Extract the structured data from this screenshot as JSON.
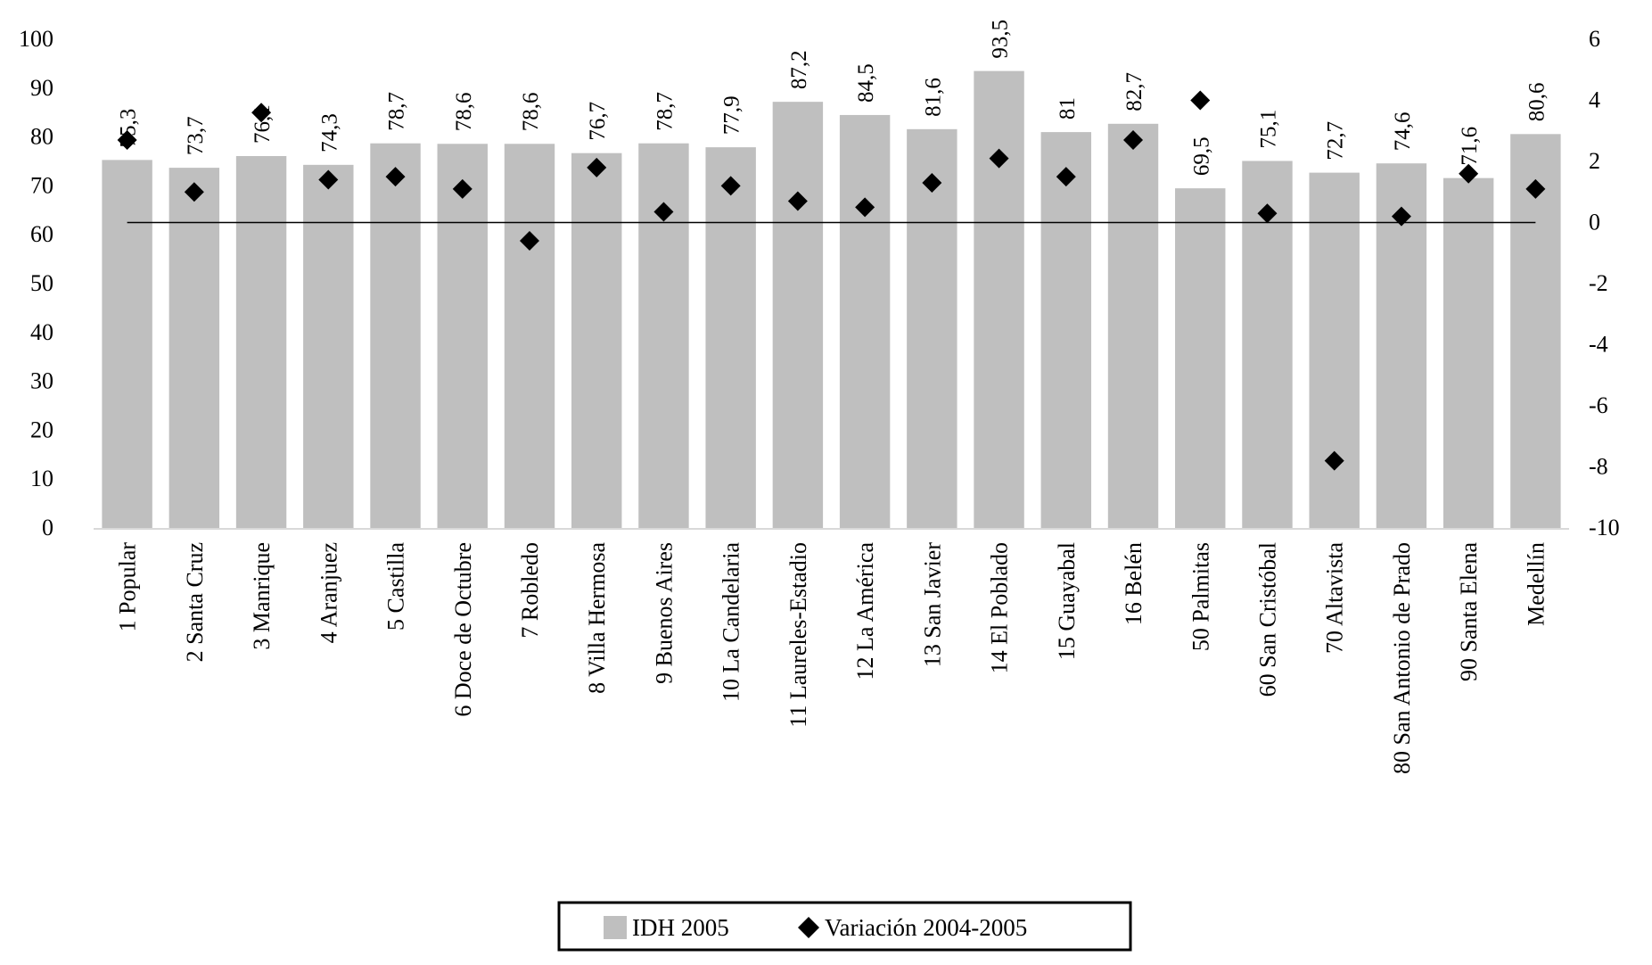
{
  "chart_data": {
    "type": "bar",
    "title": "",
    "xlabel": "",
    "ylabel": "",
    "categories": [
      "1 Popular",
      "2 Santa Cruz",
      "3 Manrique",
      "4 Aranjuez",
      "5 Castilla",
      "6 Doce de Octubre",
      "7 Robledo",
      "8 Villa Hermosa",
      "9 Buenos Aires",
      "10 La Candelaria",
      "11 Laureles-Estadio",
      "12 La América",
      "13 San Javier",
      "14 El Poblado",
      "15 Guayabal",
      "16 Belén",
      "50 Palmitas",
      "60 San Cristóbal",
      "70 Altavista",
      "80 San Antonio de Prado",
      "90 Santa Elena",
      "Medellín"
    ],
    "series": [
      {
        "name": "IDH 2005",
        "type": "bar",
        "axis": "left",
        "color": "#bfbfbf",
        "values": [
          75.3,
          73.7,
          76.1,
          74.3,
          78.7,
          78.6,
          78.6,
          76.7,
          78.7,
          77.9,
          87.2,
          84.5,
          81.6,
          93.5,
          81,
          82.7,
          69.5,
          75.1,
          72.7,
          74.6,
          71.6,
          80.6
        ],
        "labels": [
          "75,3",
          "73,7",
          "76,1",
          "74,3",
          "78,7",
          "78,6",
          "78,6",
          "76,7",
          "78,7",
          "77,9",
          "87,2",
          "84,5",
          "81,6",
          "93,5",
          "81",
          "82,7",
          "69,5",
          "75,1",
          "72,7",
          "74,6",
          "71,6",
          "80,6"
        ]
      },
      {
        "name": "Variación 2004-2005",
        "type": "scatter",
        "marker": "diamond",
        "axis": "right",
        "color": "#000000",
        "values": [
          2.7,
          1.0,
          3.6,
          1.4,
          1.5,
          1.1,
          -0.6,
          1.8,
          0.35,
          1.2,
          0.7,
          0.5,
          1.3,
          2.1,
          1.5,
          2.7,
          4.0,
          0.3,
          -7.8,
          0.2,
          1.6,
          1.1
        ]
      }
    ],
    "ylim": [
      0,
      100
    ],
    "y_ticks": [
      "0",
      "10",
      "20",
      "30",
      "40",
      "50",
      "60",
      "70",
      "80",
      "90",
      "100"
    ],
    "y2lim": [
      -10,
      6
    ],
    "y2_ticks": [
      "-10",
      "-8",
      "-6",
      "-4",
      "-2",
      "0",
      "2",
      "4",
      "6"
    ],
    "grid": false,
    "legend_position": "bottom"
  }
}
